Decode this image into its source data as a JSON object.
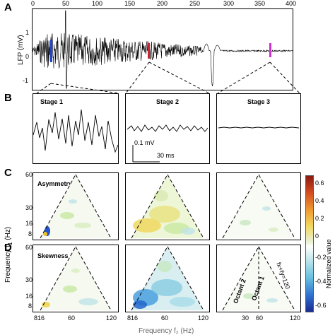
{
  "panels": {
    "A": "A",
    "B": "B",
    "C": "C",
    "D": "D"
  },
  "panelA": {
    "ylabel": "LFP (mV)",
    "xticks": [
      "0",
      "50",
      "100",
      "150",
      "200",
      "250",
      "300",
      "350",
      "400"
    ],
    "yticks": [
      "1",
      "0",
      "-1"
    ],
    "marker_colors": {
      "stage1": "#2244cc",
      "stage2": "#cc2233",
      "stage3": "#cc33cc"
    }
  },
  "panelB": {
    "stage1": "Stage 1",
    "stage2": "Stage 2",
    "stage3": "Stage 3",
    "scale_mv": "0.1 mV",
    "scale_ms": "30 ms"
  },
  "panelC": {
    "title": "Asymmetry"
  },
  "panelD": {
    "title": "Skewness",
    "octant2": "Octant 2",
    "octant1": "Octant 1",
    "line_label": "fx+fy=120"
  },
  "frequency_axis": {
    "ylabel": "Frequency f",
    "ylabel_sub": "1",
    "ylabel_unit": " (Hz)",
    "yticksC": [
      "60",
      "30",
      "16",
      "8"
    ],
    "yticksD": [
      "60",
      "30",
      "16",
      "8"
    ],
    "xticks": [
      "8",
      "16",
      "30",
      "60",
      "120"
    ],
    "xlabel_partial": "Frequency f₂ (Hz)"
  },
  "colorbar": {
    "label": "Normalized value",
    "ticks": [
      "0.6",
      "0.4",
      "0.2",
      "0",
      "-0.2",
      "-0.4",
      "-0.6"
    ]
  }
}
